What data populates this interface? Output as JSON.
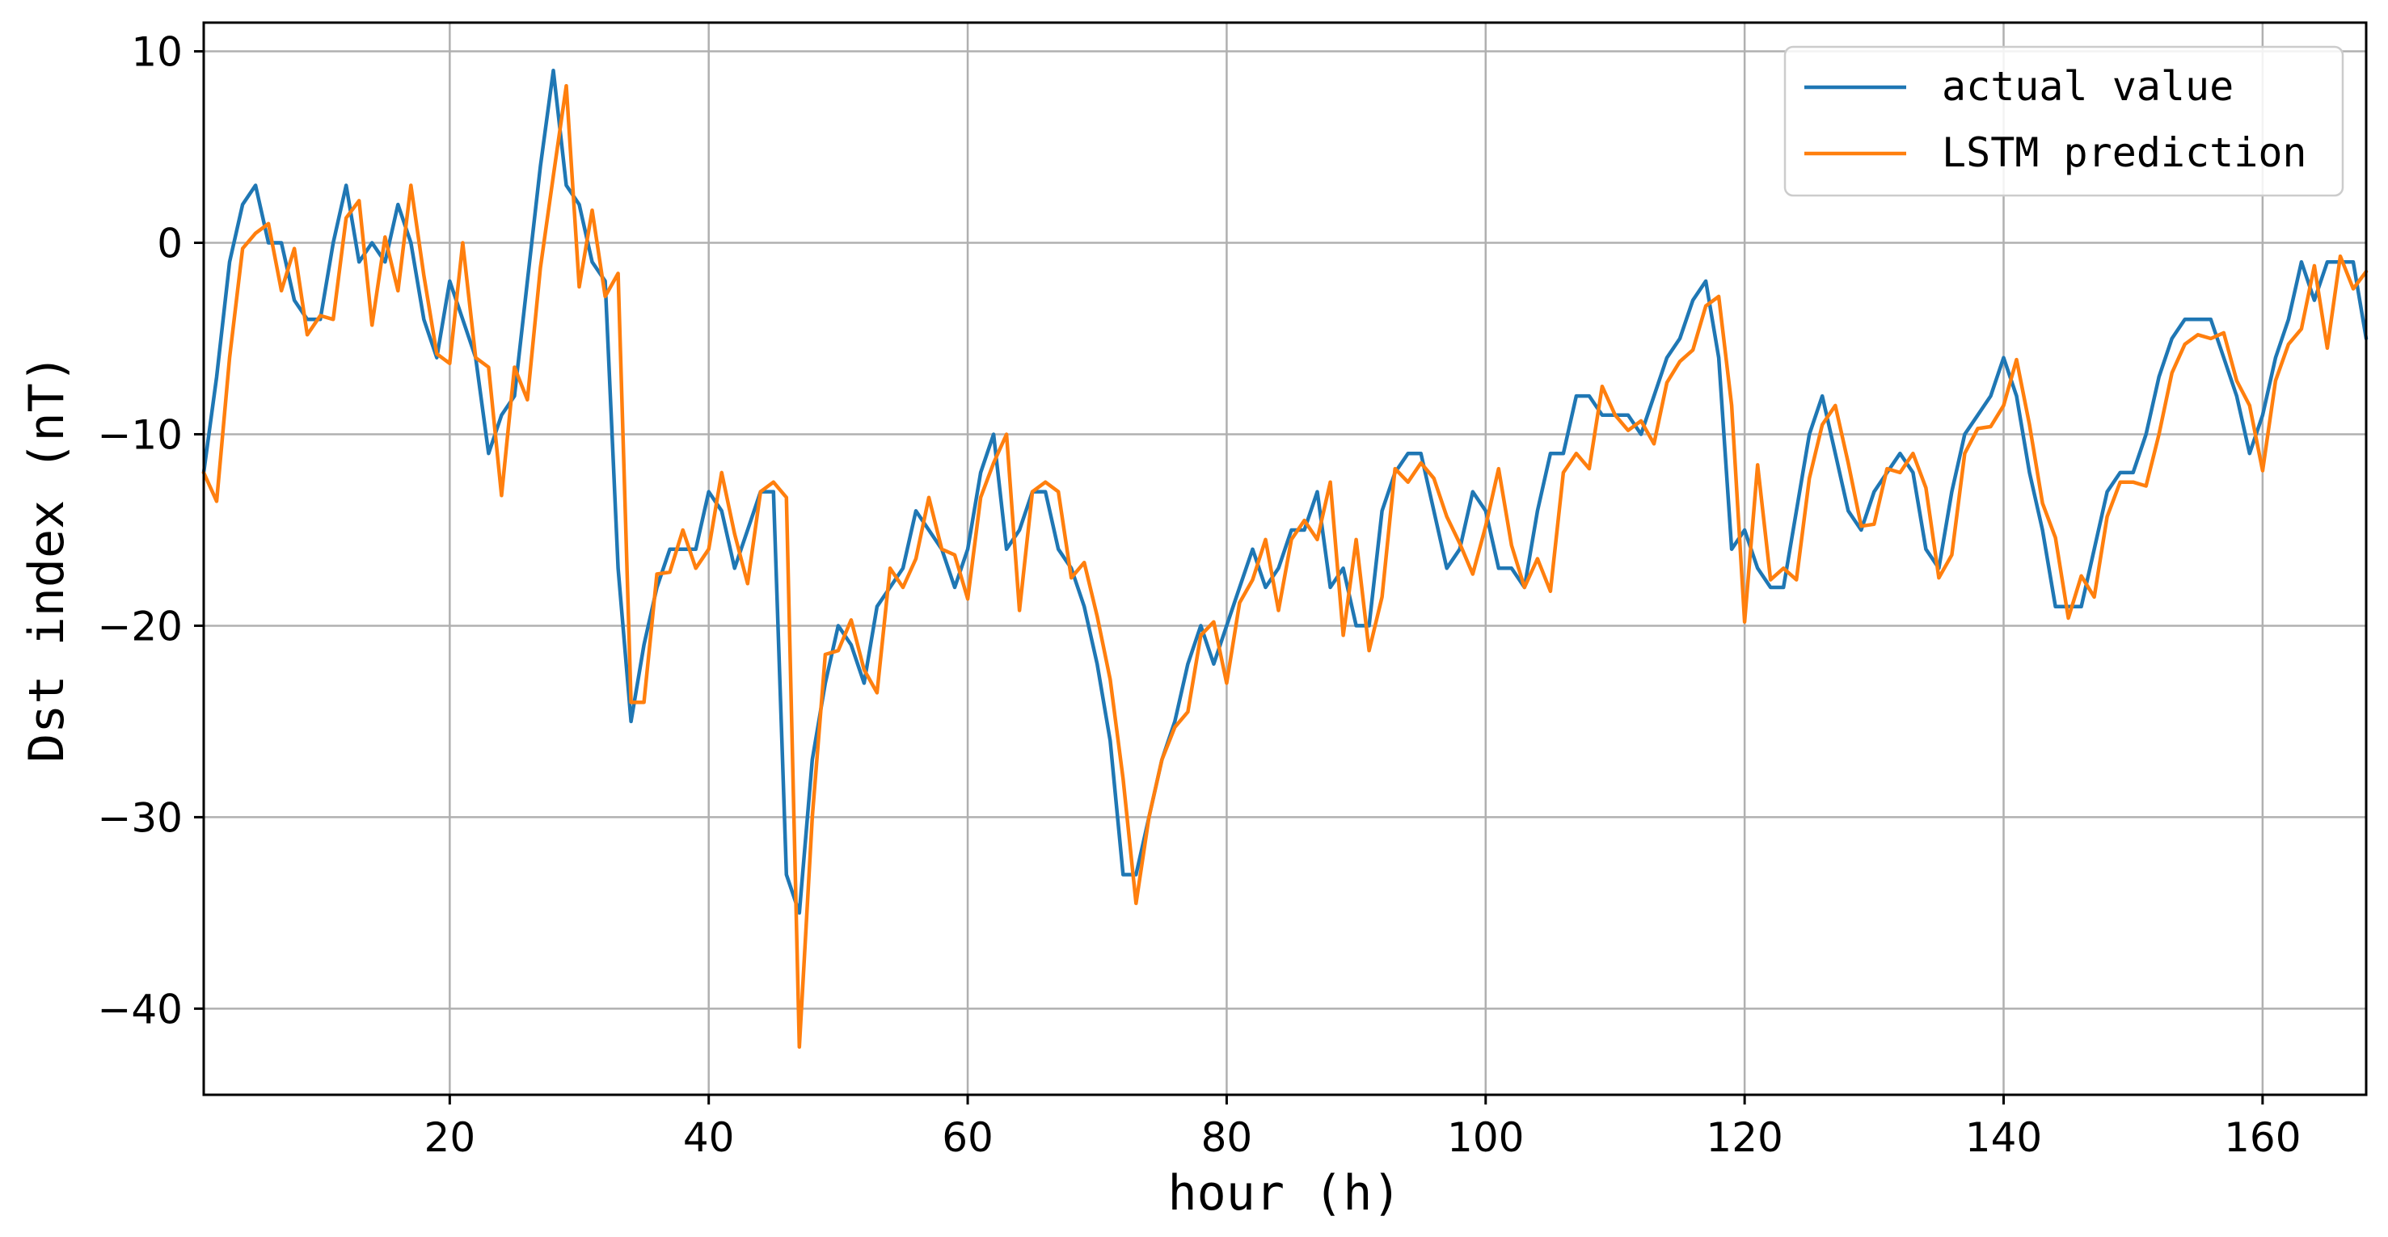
{
  "chart_data": {
    "type": "line",
    "title": "",
    "xlabel": "hour (h)",
    "ylabel": "Dst index (nT)",
    "xlim": [
      1,
      168
    ],
    "ylim": [
      -44.5,
      11.5
    ],
    "grid": true,
    "legend_position": "top-right",
    "x_ticks": [
      {
        "value": 20,
        "label": "20"
      },
      {
        "value": 40,
        "label": "40"
      },
      {
        "value": 60,
        "label": "60"
      },
      {
        "value": 80,
        "label": "80"
      },
      {
        "value": 100,
        "label": "100"
      },
      {
        "value": 120,
        "label": "120"
      },
      {
        "value": 140,
        "label": "140"
      },
      {
        "value": 160,
        "label": "160"
      }
    ],
    "y_ticks": [
      {
        "value": 10,
        "label": "10"
      },
      {
        "value": 0,
        "label": "0"
      },
      {
        "value": -10,
        "label": "−10"
      },
      {
        "value": -20,
        "label": "−20"
      },
      {
        "value": -30,
        "label": "−30"
      },
      {
        "value": -40,
        "label": "−40"
      }
    ],
    "x_start": 1,
    "series": [
      {
        "name": "actual value",
        "color": "#1f77b4",
        "values": [
          -12,
          -7,
          -1,
          2,
          3,
          0,
          0,
          -3,
          -4,
          -4,
          0,
          3,
          -1,
          0,
          -1,
          2,
          0,
          -4,
          -6,
          -2,
          -4,
          -6,
          -11,
          -9,
          -8,
          -2,
          4,
          9,
          3,
          2,
          -1,
          -2,
          -17,
          -25,
          -21,
          -18,
          -16,
          -16,
          -16,
          -13,
          -14,
          -17,
          -15,
          -13,
          -13,
          -33,
          -35,
          -27,
          -23,
          -20,
          -21,
          -23,
          -19,
          -18,
          -17,
          -14,
          -15,
          -16,
          -18,
          -16,
          -12,
          -10,
          -16,
          -15,
          -13,
          -13,
          -16,
          -17,
          -19,
          -22,
          -26,
          -33,
          -33,
          -30,
          -27,
          -25,
          -22,
          -20,
          -22,
          -20,
          -18,
          -16,
          -18,
          -17,
          -15,
          -15,
          -13,
          -18,
          -17,
          -20,
          -20,
          -14,
          -12,
          -11,
          -11,
          -14,
          -17,
          -16,
          -13,
          -14,
          -17,
          -17,
          -18,
          -14,
          -11,
          -11,
          -8,
          -8,
          -9,
          -9,
          -9,
          -10,
          -8,
          -6,
          -5,
          -3,
          -2,
          -6,
          -16,
          -15,
          -17,
          -18,
          -18,
          -14,
          -10,
          -8,
          -11,
          -14,
          -15,
          -13,
          -12,
          -11,
          -12,
          -16,
          -17,
          -13,
          -10,
          -9,
          -8,
          -6,
          -8,
          -12,
          -15,
          -19,
          -19,
          -19,
          -16,
          -13,
          -12,
          -12,
          -10,
          -7,
          -5,
          -4,
          -4,
          -4,
          -6,
          -8,
          -11,
          -9,
          -6,
          -4,
          -1,
          -3,
          -1,
          -1,
          -1,
          -5
        ]
      },
      {
        "name": "LSTM prediction",
        "color": "#ff7f0e",
        "values": [
          -12,
          -13.5,
          -6,
          -0.3,
          0.5,
          1,
          -2.5,
          -0.3,
          -4.8,
          -3.8,
          -4,
          1.3,
          2.2,
          -4.3,
          0.3,
          -2.5,
          3,
          -1.7,
          -5.8,
          -6.3,
          0,
          -6,
          -6.5,
          -13.2,
          -6.5,
          -8.2,
          -1.3,
          3.5,
          8.2,
          -2.3,
          1.7,
          -2.8,
          -1.6,
          -24,
          -24,
          -17.3,
          -17.2,
          -15,
          -17,
          -16,
          -12,
          -15.2,
          -17.8,
          -13,
          -12.5,
          -13.3,
          -42,
          -30,
          -21.5,
          -21.3,
          -19.7,
          -22.3,
          -23.5,
          -17,
          -18,
          -16.5,
          -13.3,
          -16,
          -16.3,
          -18.6,
          -13.3,
          -11.5,
          -10,
          -19.2,
          -13,
          -12.5,
          -13,
          -17.5,
          -16.7,
          -19.5,
          -22.8,
          -28,
          -34.5,
          -30,
          -27,
          -25.3,
          -24.5,
          -20.5,
          -19.8,
          -23,
          -18.8,
          -17.6,
          -15.5,
          -19.2,
          -15.5,
          -14.5,
          -15.5,
          -12.5,
          -20.5,
          -15.5,
          -21.3,
          -18.5,
          -11.8,
          -12.5,
          -11.5,
          -12.3,
          -14.3,
          -15.7,
          -17.3,
          -14.8,
          -11.8,
          -15.8,
          -18,
          -16.5,
          -18.2,
          -12,
          -11,
          -11.8,
          -7.5,
          -9,
          -9.8,
          -9.3,
          -10.5,
          -7.3,
          -6.2,
          -5.6,
          -3.3,
          -2.8,
          -8.5,
          -19.8,
          -11.6,
          -17.6,
          -17,
          -17.6,
          -12.3,
          -9.5,
          -8.5,
          -11.5,
          -14.8,
          -14.7,
          -11.8,
          -12,
          -11,
          -12.8,
          -17.5,
          -16.3,
          -11,
          -9.7,
          -9.6,
          -8.5,
          -6.1,
          -9.5,
          -13.6,
          -15.4,
          -19.6,
          -17.4,
          -18.5,
          -14.3,
          -12.5,
          -12.5,
          -12.7,
          -10,
          -6.8,
          -5.3,
          -4.8,
          -5,
          -4.7,
          -7.2,
          -8.5,
          -11.9,
          -7.2,
          -5.3,
          -4.5,
          -1.2,
          -5.5,
          -0.7,
          -2.4,
          -1.5
        ]
      }
    ]
  }
}
